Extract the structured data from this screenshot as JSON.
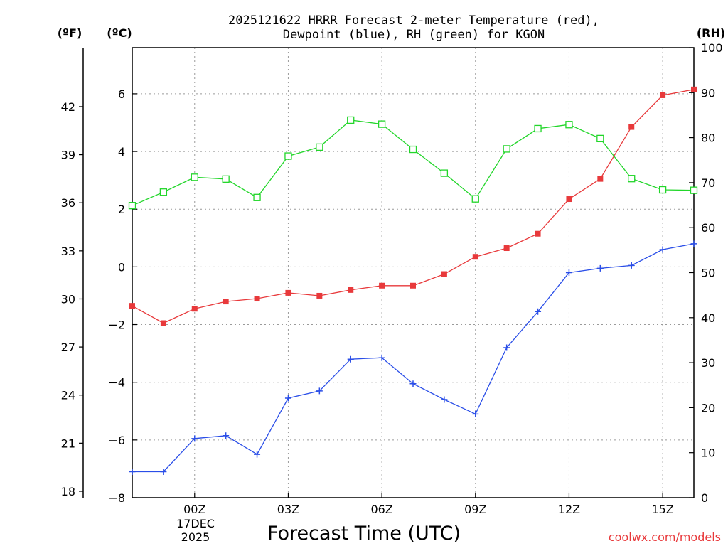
{
  "chart_data": {
    "type": "line",
    "title_line1": "2025121622 HRRR Forecast 2-meter Temperature (red),",
    "title_line2": "Dewpoint (blue), RH (green) for KGON",
    "xlabel": "Forecast Time (UTC)",
    "hours": [
      -2,
      -1,
      0,
      1,
      2,
      3,
      4,
      5,
      6,
      7,
      8,
      9,
      10,
      11,
      12,
      13,
      14,
      15,
      16
    ],
    "xlim": [
      -2,
      16
    ],
    "x_ticks": [
      {
        "hour": 0,
        "label": "00Z"
      },
      {
        "hour": 3,
        "label": "03Z"
      },
      {
        "hour": 6,
        "label": "06Z"
      },
      {
        "hour": 9,
        "label": "09Z"
      },
      {
        "hour": 12,
        "label": "12Z"
      },
      {
        "hour": 15,
        "label": "15Z"
      }
    ],
    "date_label_line1": "17DEC",
    "date_label_line2": "2025",
    "left_axis_c": {
      "label": "(ºC)",
      "ylim": [
        -8,
        7.6
      ],
      "ticks": [
        -8,
        -6,
        -4,
        -2,
        0,
        2,
        4,
        6
      ]
    },
    "left_axis_f": {
      "label": "(ºF)",
      "ticks": [
        18,
        21,
        24,
        27,
        30,
        33,
        36,
        39,
        42
      ]
    },
    "right_axis_rh": {
      "label": "(RH)",
      "ylim": [
        0,
        100
      ],
      "ticks": [
        0,
        10,
        20,
        30,
        40,
        50,
        60,
        70,
        80,
        90,
        100
      ]
    },
    "series": [
      {
        "name": "Temperature",
        "unit": "C",
        "color": "#e8393b",
        "marker": "filled-square",
        "values": [
          -1.35,
          -1.95,
          -1.45,
          -1.2,
          -1.1,
          -0.9,
          -1.0,
          -0.8,
          -0.65,
          -0.65,
          -0.25,
          0.35,
          0.65,
          1.15,
          2.35,
          3.05,
          4.85,
          5.95,
          6.15
        ]
      },
      {
        "name": "Dewpoint",
        "unit": "C",
        "color": "#2a4ee8",
        "marker": "plus",
        "values": [
          -7.1,
          -7.1,
          -5.95,
          -5.85,
          -6.5,
          -4.55,
          -4.3,
          -3.2,
          -3.15,
          -4.05,
          -4.6,
          -5.1,
          -2.8,
          -1.55,
          -0.2,
          -0.05,
          0.05,
          0.6,
          0.8
        ]
      },
      {
        "name": "RH",
        "unit": "%",
        "color": "#22d62a",
        "marker": "open-square",
        "values": [
          64.9,
          67.9,
          71.2,
          70.8,
          66.7,
          75.9,
          77.9,
          83.9,
          83.0,
          77.4,
          72.1,
          66.4,
          77.5,
          82.0,
          82.9,
          79.8,
          70.9,
          68.4,
          68.3
        ]
      }
    ]
  },
  "watermark": "coolwx.com/models"
}
